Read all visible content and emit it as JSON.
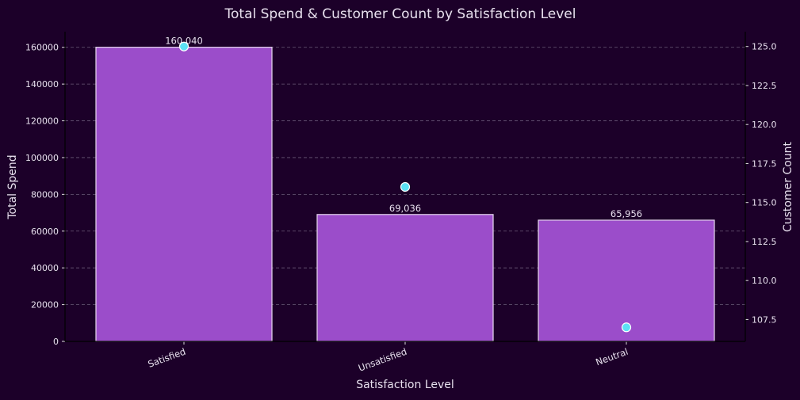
{
  "chart_data": {
    "type": "bar",
    "title": "Total Spend & Customer Count by Satisfaction Level",
    "xlabel": "Satisfaction Level",
    "ylabel": "Total Spend",
    "y2label": "Customer Count",
    "categories": [
      "Satisfied",
      "Unsatisfied",
      "Neutral"
    ],
    "series": [
      {
        "kind": "bar",
        "axis": "left",
        "values": [
          160040,
          69036,
          65956
        ],
        "data_labels": [
          "160,040",
          "69,036",
          "65,956"
        ],
        "color": "#9b4dca",
        "edge_color": "#e8d8f0"
      },
      {
        "kind": "scatter",
        "axis": "right",
        "values": [
          125,
          116,
          107
        ],
        "color": "#5ce1f5",
        "edge_color": "#ffffff"
      }
    ],
    "ylim": [
      0,
      168500
    ],
    "y2lim": [
      106.1,
      125.95
    ],
    "yticks": [
      "0",
      "20000",
      "40000",
      "60000",
      "80000",
      "100000",
      "120000",
      "140000",
      "160000"
    ],
    "y2ticks": [
      "107.5",
      "110.0",
      "112.5",
      "115.0",
      "117.5",
      "120.0",
      "122.5",
      "125.0"
    ],
    "grid": "horizontal dashed",
    "background": "#1c0029"
  }
}
